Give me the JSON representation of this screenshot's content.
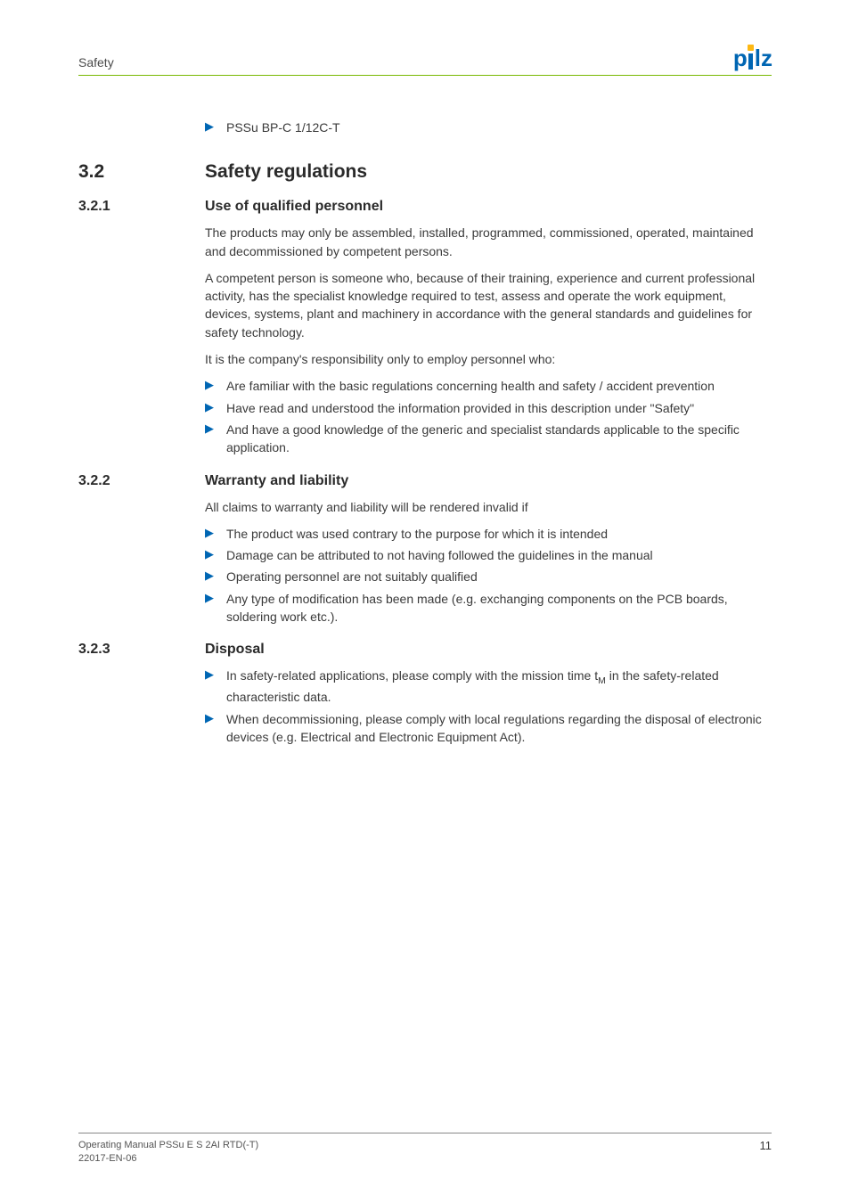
{
  "header": {
    "section": "Safety",
    "logo_text": "pilz"
  },
  "top_bullet": "PSSu BP-C 1/12C-T",
  "s3_2": {
    "num": "3.2",
    "title": "Safety regulations"
  },
  "s3_2_1": {
    "num": "3.2.1",
    "title": "Use of qualified personnel",
    "p1": "The products may only be assembled, installed, programmed, commissioned, operated, maintained and decommissioned by competent persons.",
    "p2": "A competent person is someone who, because of their training, experience and current professional activity, has the specialist knowledge required to test, assess and operate the work equipment, devices, systems, plant and machinery in accordance with the general standards and guidelines for safety technology.",
    "p3": "It is the company's responsibility only to employ personnel who:",
    "b1": "Are familiar with the basic regulations concerning health and safety / accident prevention",
    "b2": "Have read and understood the information provided in this description under \"Safety\"",
    "b3": "And have a good knowledge of the generic and specialist standards applicable to the specific application."
  },
  "s3_2_2": {
    "num": "3.2.2",
    "title": "Warranty and liability",
    "p1": "All claims to warranty and liability will be rendered invalid if",
    "b1": "The product was used contrary to the purpose for which it is intended",
    "b2": "Damage can be attributed to not having followed the guidelines in the manual",
    "b3": "Operating personnel are not suitably qualified",
    "b4": "Any type of modification has been made (e.g. exchanging components on the PCB boards, soldering work etc.)."
  },
  "s3_2_3": {
    "num": "3.2.3",
    "title": "Disposal",
    "b1_pre": "In safety-related applications, please comply with the mission time t",
    "b1_sub": "M",
    "b1_post": " in the safety-related characteristic data.",
    "b2": "When decommissioning, please comply with local regulations regarding the disposal of electronic devices (e.g. Electrical and Electronic Equipment Act)."
  },
  "footer": {
    "line1": "Operating Manual PSSu E S 2AI RTD(-T)",
    "line2": "22017-EN-06",
    "page": "11"
  }
}
